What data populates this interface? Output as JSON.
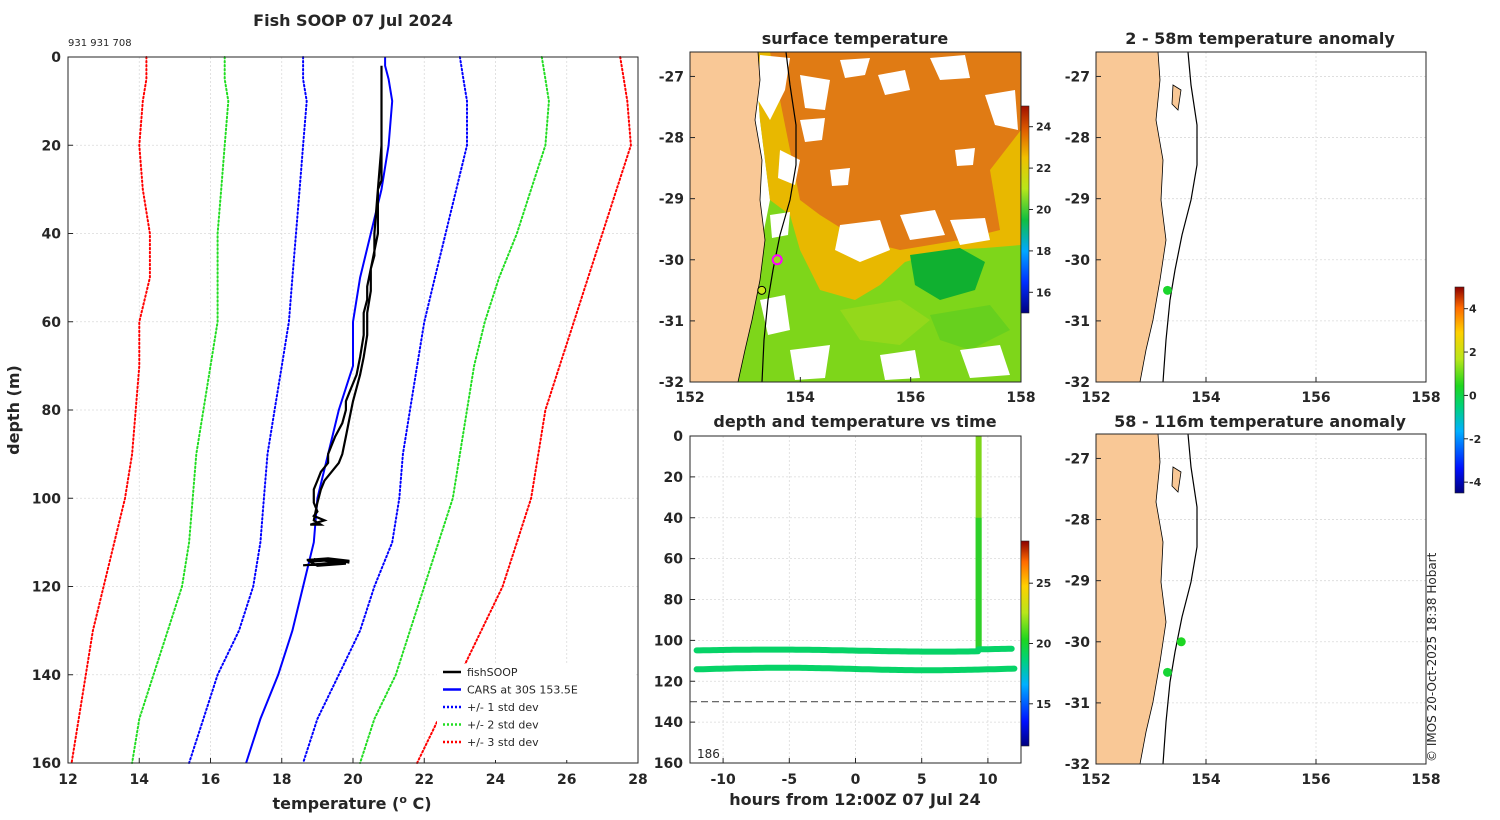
{
  "colors": {
    "fishsoop": "#000000",
    "cars": "#0000ff",
    "std1": "#0000ff",
    "std2": "#22dd22",
    "std3": "#ff0000",
    "land": "#f9c896",
    "marker": "#22dd22",
    "sst_warm": "#e07b14",
    "sst_mid": "#e8b800",
    "sst_cool": "#7ed61a",
    "sst_cold": "#10b030"
  },
  "copyright": "© IMOS 20-Oct-2025 18:38 Hobart",
  "chart_data": [
    {
      "id": "profile",
      "type": "line",
      "title": "Fish SOOP 07 Jul 2024",
      "subtitle": "931 931 708",
      "xlabel": "temperature (",
      "xlabel_sup": "o",
      "xlabel_unit": " C)",
      "ylabel": "depth (m)",
      "xlim": [
        12,
        28
      ],
      "ylim": [
        0,
        160
      ],
      "y_reversed": true,
      "xticks": [
        12,
        14,
        16,
        18,
        20,
        22,
        24,
        26,
        28
      ],
      "yticks": [
        0,
        20,
        40,
        60,
        80,
        100,
        120,
        140,
        160
      ],
      "grid": true,
      "legend_position": "bottom-right",
      "series": [
        {
          "name": "+/- 3 std dev",
          "style": "dotted",
          "color": "#ff0000",
          "points": [
            [
              14.2,
              0
            ],
            [
              14.2,
              5
            ],
            [
              14.1,
              10
            ],
            [
              14.0,
              20
            ],
            [
              14.1,
              30
            ],
            [
              14.3,
              40
            ],
            [
              14.3,
              50
            ],
            [
              14.0,
              60
            ],
            [
              14.0,
              70
            ],
            [
              13.9,
              80
            ],
            [
              13.8,
              90
            ],
            [
              13.6,
              100
            ],
            [
              13.3,
              110
            ],
            [
              13.0,
              120
            ],
            [
              12.7,
              130
            ],
            [
              12.5,
              140
            ],
            [
              12.3,
              150
            ],
            [
              12.1,
              160
            ]
          ]
        },
        {
          "name": "+/- 3 std dev upper",
          "style": "dotted",
          "color": "#ff0000",
          "legend": false,
          "points": [
            [
              27.5,
              0
            ],
            [
              27.6,
              5
            ],
            [
              27.7,
              10
            ],
            [
              27.8,
              20
            ],
            [
              27.4,
              30
            ],
            [
              27.0,
              40
            ],
            [
              26.6,
              50
            ],
            [
              26.2,
              60
            ],
            [
              25.8,
              70
            ],
            [
              25.4,
              80
            ],
            [
              25.2,
              90
            ],
            [
              25.0,
              100
            ],
            [
              24.6,
              110
            ],
            [
              24.2,
              120
            ],
            [
              23.6,
              130
            ],
            [
              23.0,
              140
            ],
            [
              22.4,
              150
            ],
            [
              21.8,
              160
            ]
          ]
        },
        {
          "name": "+/- 2 std dev",
          "style": "dotted",
          "color": "#22dd22",
          "points": [
            [
              16.4,
              0
            ],
            [
              16.4,
              5
            ],
            [
              16.5,
              10
            ],
            [
              16.4,
              20
            ],
            [
              16.3,
              30
            ],
            [
              16.2,
              40
            ],
            [
              16.2,
              50
            ],
            [
              16.2,
              60
            ],
            [
              16.0,
              70
            ],
            [
              15.8,
              80
            ],
            [
              15.6,
              90
            ],
            [
              15.5,
              100
            ],
            [
              15.4,
              110
            ],
            [
              15.2,
              120
            ],
            [
              14.8,
              130
            ],
            [
              14.4,
              140
            ],
            [
              14.0,
              150
            ],
            [
              13.8,
              160
            ]
          ]
        },
        {
          "name": "+/- 2 std dev upper",
          "style": "dotted",
          "color": "#22dd22",
          "legend": false,
          "points": [
            [
              25.3,
              0
            ],
            [
              25.4,
              5
            ],
            [
              25.5,
              10
            ],
            [
              25.4,
              20
            ],
            [
              25.0,
              30
            ],
            [
              24.6,
              40
            ],
            [
              24.1,
              50
            ],
            [
              23.7,
              60
            ],
            [
              23.4,
              70
            ],
            [
              23.2,
              80
            ],
            [
              23.0,
              90
            ],
            [
              22.8,
              100
            ],
            [
              22.4,
              110
            ],
            [
              22.0,
              120
            ],
            [
              21.6,
              130
            ],
            [
              21.2,
              140
            ],
            [
              20.6,
              150
            ],
            [
              20.2,
              160
            ]
          ]
        },
        {
          "name": "+/- 1 std dev",
          "style": "dotted",
          "color": "#0000ff",
          "points": [
            [
              18.6,
              0
            ],
            [
              18.6,
              5
            ],
            [
              18.7,
              10
            ],
            [
              18.6,
              20
            ],
            [
              18.5,
              30
            ],
            [
              18.4,
              40
            ],
            [
              18.3,
              50
            ],
            [
              18.2,
              60
            ],
            [
              18.0,
              70
            ],
            [
              17.8,
              80
            ],
            [
              17.6,
              90
            ],
            [
              17.5,
              100
            ],
            [
              17.4,
              110
            ],
            [
              17.2,
              120
            ],
            [
              16.8,
              130
            ],
            [
              16.2,
              140
            ],
            [
              15.8,
              150
            ],
            [
              15.4,
              160
            ]
          ]
        },
        {
          "name": "+/- 1 std dev upper",
          "style": "dotted",
          "color": "#0000ff",
          "legend": false,
          "points": [
            [
              23.0,
              0
            ],
            [
              23.1,
              5
            ],
            [
              23.2,
              10
            ],
            [
              23.2,
              20
            ],
            [
              22.9,
              30
            ],
            [
              22.6,
              40
            ],
            [
              22.3,
              50
            ],
            [
              22.0,
              60
            ],
            [
              21.8,
              70
            ],
            [
              21.6,
              80
            ],
            [
              21.4,
              90
            ],
            [
              21.3,
              100
            ],
            [
              21.1,
              110
            ],
            [
              20.6,
              120
            ],
            [
              20.2,
              130
            ],
            [
              19.6,
              140
            ],
            [
              19.0,
              150
            ],
            [
              18.6,
              160
            ]
          ]
        },
        {
          "name": "CARS at 30S 153.5E",
          "style": "solid",
          "color": "#0000ff",
          "points": [
            [
              20.9,
              0
            ],
            [
              20.9,
              2
            ],
            [
              21.0,
              5
            ],
            [
              21.1,
              10
            ],
            [
              21.0,
              20
            ],
            [
              20.8,
              30
            ],
            [
              20.5,
              40
            ],
            [
              20.2,
              50
            ],
            [
              20.0,
              60
            ],
            [
              20.0,
              70
            ],
            [
              19.8,
              75
            ],
            [
              19.6,
              80
            ],
            [
              19.3,
              90
            ],
            [
              19.0,
              100
            ],
            [
              18.9,
              110
            ],
            [
              18.6,
              120
            ],
            [
              18.3,
              130
            ],
            [
              17.9,
              140
            ],
            [
              17.4,
              150
            ],
            [
              17.0,
              160
            ]
          ]
        },
        {
          "name": "fishSOOP",
          "style": "solid",
          "color": "#000000",
          "points": [
            [
              20.8,
              2
            ],
            [
              20.8,
              10
            ],
            [
              20.8,
              20
            ],
            [
              20.8,
              28
            ],
            [
              20.7,
              30
            ],
            [
              20.6,
              40
            ],
            [
              20.6,
              45
            ],
            [
              20.5,
              48
            ],
            [
              20.4,
              52
            ],
            [
              20.4,
              55
            ],
            [
              20.3,
              58
            ],
            [
              20.3,
              63
            ],
            [
              20.2,
              68
            ],
            [
              20.1,
              72
            ],
            [
              20.0,
              74
            ],
            [
              19.9,
              76
            ],
            [
              19.8,
              78
            ],
            [
              19.8,
              80
            ],
            [
              19.7,
              83
            ],
            [
              19.5,
              86
            ],
            [
              19.4,
              88
            ],
            [
              19.3,
              90
            ],
            [
              19.3,
              92
            ],
            [
              19.1,
              94
            ],
            [
              19.0,
              96
            ],
            [
              18.9,
              98
            ],
            [
              18.9,
              101
            ],
            [
              19.0,
              103
            ],
            [
              18.9,
              104
            ],
            [
              19.2,
              105
            ],
            [
              18.8,
              106
            ],
            [
              19.1,
              106
            ],
            [
              18.9,
              105
            ],
            [
              19.0,
              101
            ],
            [
              19.1,
              98
            ],
            [
              19.2,
              96
            ],
            [
              19.4,
              94
            ],
            [
              19.6,
              92
            ],
            [
              19.7,
              90
            ],
            [
              19.8,
              86
            ],
            [
              19.9,
              82
            ],
            [
              20.0,
              78
            ],
            [
              20.2,
              72
            ],
            [
              20.3,
              68
            ],
            [
              20.4,
              63
            ],
            [
              20.4,
              58
            ],
            [
              20.5,
              53
            ],
            [
              20.5,
              48
            ],
            [
              20.7,
              40
            ],
            [
              20.7,
              30
            ],
            [
              20.8,
              20
            ],
            [
              20.8,
              2
            ]
          ]
        },
        {
          "name": "fishSOOP cluster",
          "style": "solid",
          "color": "#000000",
          "legend": false,
          "points": [
            [
              18.7,
              114
            ],
            [
              19.3,
              113.6
            ],
            [
              19.9,
              114.2
            ],
            [
              19.3,
              114.9
            ],
            [
              18.6,
              115.2
            ],
            [
              19.6,
              114.5
            ],
            [
              18.9,
              113.8
            ],
            [
              19.8,
              114.8
            ],
            [
              19.0,
              115.3
            ],
            [
              18.8,
              114.4
            ],
            [
              19.5,
              113.9
            ],
            [
              19.9,
              114.6
            ]
          ]
        }
      ]
    },
    {
      "id": "sst",
      "type": "heatmap",
      "title": "surface temperature",
      "xlim": [
        152,
        158
      ],
      "ylim": [
        -32,
        -26.6
      ],
      "xticks": [
        152,
        154,
        156,
        158
      ],
      "yticks": [
        -27,
        -28,
        -29,
        -30,
        -31,
        -32
      ],
      "colorbar_ticks": [
        16,
        18,
        20,
        22,
        24
      ],
      "colorbar_range": [
        15,
        25
      ],
      "markers": [
        {
          "lon": 153.58,
          "lat": -30.0,
          "style": "magenta-ring"
        },
        {
          "lon": 153.3,
          "lat": -30.5,
          "style": "yellow-dot"
        }
      ]
    },
    {
      "id": "time",
      "type": "scatter",
      "title": "depth and temperature vs time",
      "xlabel": "hours from 12:00Z 07 Jul 24",
      "xlim": [
        -12.5,
        12.5
      ],
      "ylim": [
        0,
        160
      ],
      "y_reversed": true,
      "xticks": [
        -10,
        -5,
        0,
        5,
        10
      ],
      "yticks": [
        0,
        20,
        40,
        60,
        80,
        100,
        120,
        140,
        160
      ],
      "reference_depth": 130,
      "annotation": "186",
      "colorbar_ticks": [
        15,
        20,
        25
      ],
      "colorbar_range": [
        11.5,
        28.5
      ],
      "tracks": [
        {
          "name": "descent",
          "x": 9.3,
          "depth_from": 0,
          "depth_to": 104
        },
        {
          "name": "upper-bottom",
          "depth": 105,
          "x_from": -12.0,
          "x_to": 9.3
        },
        {
          "name": "after",
          "depth": 104,
          "x_from": 9.3,
          "x_to": 12.0
        },
        {
          "name": "lower-bottom",
          "depth": 114,
          "x_from": -12.0,
          "x_to": 12.0
        }
      ]
    },
    {
      "id": "anom_shallow",
      "type": "scatter",
      "title": "2 - 58m temperature anomaly",
      "xlim": [
        152,
        158
      ],
      "ylim": [
        -32,
        -26.6
      ],
      "xticks": [
        152,
        154,
        156,
        158
      ],
      "yticks": [
        -27,
        -28,
        -29,
        -30,
        -31,
        -32
      ],
      "points": [
        {
          "lon": 153.3,
          "lat": -30.5,
          "anomaly": 0.3
        }
      ]
    },
    {
      "id": "anom_deep",
      "type": "scatter",
      "title": "58 - 116m temperature anomaly",
      "xlim": [
        152,
        158
      ],
      "ylim": [
        -32,
        -26.6
      ],
      "xticks": [
        152,
        154,
        156,
        158
      ],
      "yticks": [
        -27,
        -28,
        -29,
        -30,
        -31,
        -32
      ],
      "points": [
        {
          "lon": 153.55,
          "lat": -30.0,
          "anomaly": 0.4
        },
        {
          "lon": 153.3,
          "lat": -30.5,
          "anomaly": 0.2
        }
      ]
    },
    {
      "id": "anomaly_colorbar",
      "type": "colorbar",
      "ticks": [
        -4,
        -2,
        0,
        2,
        4
      ],
      "range": [
        -4.5,
        5
      ]
    }
  ]
}
